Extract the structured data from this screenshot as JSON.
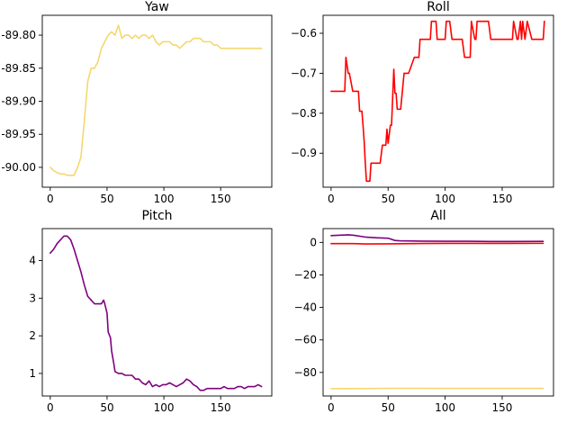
{
  "chart_data": [
    {
      "type": "line",
      "title": "Yaw",
      "xlim": [
        -7,
        195
      ],
      "ylim": [
        -90.03,
        -89.77
      ],
      "xticks": [
        0,
        50,
        100,
        150
      ],
      "yticks": [
        -89.8,
        -89.85,
        -89.9,
        -89.95,
        -90.0
      ],
      "ytick_labels": [
        "-89.80",
        "-89.85",
        "-89.90",
        "-89.95",
        "-90.00"
      ],
      "grid": false,
      "series": [
        {
          "color": "#f5d76e",
          "x": [
            0,
            3,
            6,
            9,
            12,
            15,
            18,
            21,
            24,
            27,
            30,
            33,
            36,
            39,
            42,
            45,
            48,
            51,
            54,
            57,
            60,
            63,
            66,
            69,
            72,
            75,
            78,
            81,
            84,
            87,
            90,
            93,
            96,
            99,
            102,
            105,
            108,
            111,
            114,
            117,
            120,
            123,
            126,
            129,
            132,
            135,
            138,
            141,
            144,
            147,
            150,
            153,
            156,
            159,
            162,
            165,
            168,
            171,
            174,
            177,
            180,
            183,
            186
          ],
          "y": [
            -90.0,
            -90.005,
            -90.008,
            -90.01,
            -90.01,
            -90.012,
            -90.012,
            -90.012,
            -90.0,
            -89.985,
            -89.93,
            -89.87,
            -89.85,
            -89.85,
            -89.84,
            -89.82,
            -89.81,
            -89.8,
            -89.795,
            -89.8,
            -89.785,
            -89.805,
            -89.8,
            -89.8,
            -89.805,
            -89.8,
            -89.805,
            -89.8,
            -89.8,
            -89.805,
            -89.8,
            -89.81,
            -89.815,
            -89.81,
            -89.81,
            -89.81,
            -89.815,
            -89.815,
            -89.82,
            -89.815,
            -89.81,
            -89.81,
            -89.805,
            -89.805,
            -89.805,
            -89.81,
            -89.81,
            -89.81,
            -89.815,
            -89.815,
            -89.82,
            -89.82,
            -89.82,
            -89.82,
            -89.82,
            -89.82,
            -89.82,
            -89.82,
            -89.82,
            -89.82,
            -89.82,
            -89.82,
            -89.82
          ]
        }
      ]
    },
    {
      "type": "line",
      "title": "Roll",
      "xlim": [
        -7,
        195
      ],
      "ylim": [
        -0.985,
        -0.555
      ],
      "xticks": [
        0,
        50,
        100,
        150
      ],
      "yticks": [
        -0.6,
        -0.7,
        -0.8,
        -0.9
      ],
      "ytick_labels": [
        "−0.6",
        "−0.7",
        "−0.8",
        "−0.9"
      ],
      "grid": false,
      "series": [
        {
          "color": "#ff0000",
          "x": [
            0,
            5,
            10,
            12,
            13,
            15,
            16,
            19,
            20,
            24,
            25,
            27,
            28,
            29,
            30,
            31,
            32,
            34,
            35,
            42,
            43,
            45,
            48,
            49,
            50,
            52,
            53,
            55,
            56,
            57,
            58,
            59,
            60,
            61,
            64,
            65,
            67,
            68,
            73,
            74,
            77,
            78,
            82,
            83,
            87,
            88,
            90,
            92,
            93,
            95,
            96,
            100,
            101,
            104,
            106,
            108,
            109,
            111,
            112,
            115,
            117,
            118,
            122,
            123,
            126,
            127,
            128,
            129,
            131,
            132,
            138,
            140,
            141,
            158,
            159,
            160,
            163,
            164,
            166,
            167,
            168,
            170,
            172,
            176,
            178,
            180,
            182,
            186,
            187
          ],
          "y": [
            -0.745,
            -0.745,
            -0.745,
            -0.745,
            -0.66,
            -0.7,
            -0.7,
            -0.745,
            -0.745,
            -0.745,
            -0.795,
            -0.795,
            -0.83,
            -0.87,
            -0.925,
            -0.97,
            -0.97,
            -0.97,
            -0.925,
            -0.925,
            -0.925,
            -0.88,
            -0.88,
            -0.84,
            -0.875,
            -0.83,
            -0.83,
            -0.69,
            -0.75,
            -0.75,
            -0.79,
            -0.79,
            -0.79,
            -0.79,
            -0.7,
            -0.7,
            -0.7,
            -0.7,
            -0.66,
            -0.66,
            -0.66,
            -0.615,
            -0.615,
            -0.615,
            -0.615,
            -0.57,
            -0.57,
            -0.57,
            -0.615,
            -0.615,
            -0.615,
            -0.615,
            -0.57,
            -0.57,
            -0.615,
            -0.615,
            -0.615,
            -0.615,
            -0.615,
            -0.615,
            -0.66,
            -0.66,
            -0.66,
            -0.57,
            -0.615,
            -0.615,
            -0.57,
            -0.57,
            -0.57,
            -0.57,
            -0.57,
            -0.615,
            -0.615,
            -0.615,
            -0.615,
            -0.57,
            -0.615,
            -0.615,
            -0.57,
            -0.615,
            -0.57,
            -0.615,
            -0.57,
            -0.615,
            -0.615,
            -0.615,
            -0.615,
            -0.615,
            -0.57
          ]
        }
      ]
    },
    {
      "type": "line",
      "title": "Pitch",
      "xlim": [
        -7,
        195
      ],
      "ylim": [
        0.4,
        4.85
      ],
      "xticks": [
        0,
        50,
        100,
        150
      ],
      "yticks": [
        1,
        2,
        3,
        4
      ],
      "ytick_labels": [
        "1",
        "2",
        "3",
        "4"
      ],
      "grid": false,
      "series": [
        {
          "color": "#800080",
          "x": [
            0,
            3,
            6,
            9,
            12,
            15,
            18,
            21,
            24,
            27,
            30,
            33,
            36,
            39,
            42,
            45,
            47,
            48,
            50,
            51,
            53,
            54,
            56,
            57,
            60,
            63,
            66,
            69,
            72,
            75,
            78,
            81,
            84,
            87,
            90,
            93,
            96,
            99,
            102,
            105,
            108,
            111,
            114,
            117,
            120,
            123,
            126,
            129,
            132,
            135,
            138,
            141,
            144,
            147,
            150,
            153,
            156,
            159,
            162,
            165,
            168,
            171,
            174,
            177,
            180,
            183,
            186
          ],
          "y": [
            4.2,
            4.3,
            4.45,
            4.55,
            4.65,
            4.65,
            4.55,
            4.3,
            4.0,
            3.7,
            3.35,
            3.05,
            2.95,
            2.85,
            2.85,
            2.85,
            2.95,
            2.85,
            2.6,
            2.1,
            1.95,
            1.6,
            1.25,
            1.05,
            1.0,
            1.0,
            0.95,
            0.95,
            0.95,
            0.85,
            0.85,
            0.75,
            0.7,
            0.8,
            0.65,
            0.7,
            0.65,
            0.7,
            0.7,
            0.75,
            0.7,
            0.65,
            0.7,
            0.75,
            0.85,
            0.8,
            0.7,
            0.65,
            0.55,
            0.55,
            0.6,
            0.6,
            0.6,
            0.6,
            0.6,
            0.65,
            0.6,
            0.6,
            0.6,
            0.65,
            0.65,
            0.6,
            0.65,
            0.65,
            0.65,
            0.7,
            0.65
          ]
        }
      ]
    },
    {
      "type": "line",
      "title": "All",
      "xlim": [
        -7,
        195
      ],
      "ylim": [
        -94.5,
        8.5
      ],
      "xticks": [
        0,
        50,
        100,
        150
      ],
      "yticks": [
        0,
        -20,
        -40,
        -60,
        -80
      ],
      "ytick_labels": [
        "0",
        "−20",
        "−40",
        "−60",
        "−80"
      ],
      "grid": false,
      "series": [
        {
          "color": "#800080",
          "x": [
            0,
            10,
            15,
            20,
            30,
            40,
            50,
            56,
            60,
            80,
            100,
            120,
            140,
            160,
            186
          ],
          "y": [
            4.2,
            4.5,
            4.65,
            4.4,
            3.3,
            2.85,
            2.6,
            1.2,
            1.0,
            0.8,
            0.7,
            0.7,
            0.6,
            0.6,
            0.65
          ]
        },
        {
          "color": "#ff0000",
          "x": [
            0,
            20,
            30,
            50,
            60,
            80,
            100,
            120,
            150,
            186
          ],
          "y": [
            -0.75,
            -0.75,
            -0.97,
            -0.88,
            -0.79,
            -0.66,
            -0.615,
            -0.6,
            -0.615,
            -0.57
          ]
        },
        {
          "color": "#f5d76e",
          "x": [
            0,
            30,
            50,
            60,
            80,
            100,
            120,
            150,
            186
          ],
          "y": [
            -90.0,
            -89.93,
            -89.8,
            -89.8,
            -89.8,
            -89.81,
            -89.81,
            -89.82,
            -89.82
          ]
        }
      ]
    }
  ]
}
